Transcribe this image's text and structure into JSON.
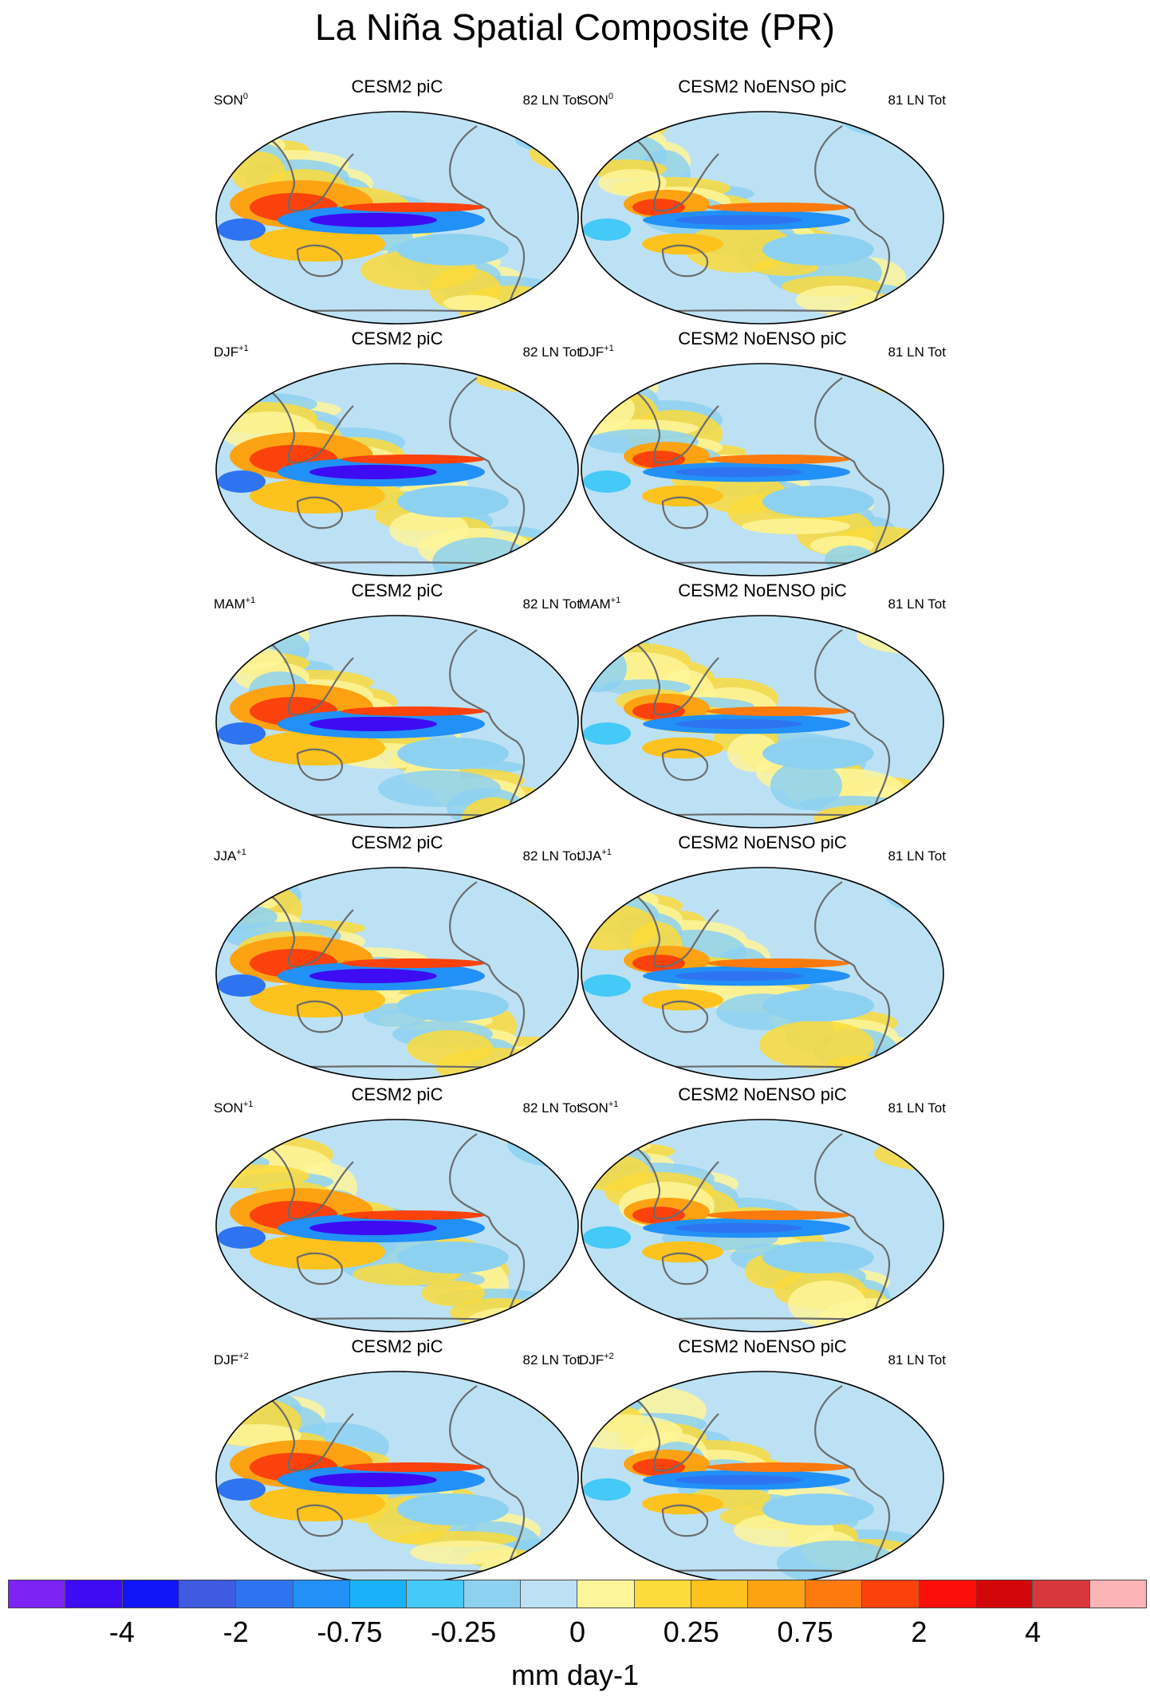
{
  "title": "La Niña Spatial Composite (PR)",
  "map_title_left": "CESM2 piC",
  "map_title_right": "CESM2 NoENSO piC",
  "count_left": "82 LN Tot",
  "count_right": "81 LN Tot",
  "rows": [
    {
      "season": "SON",
      "sup": "0"
    },
    {
      "season": "DJF",
      "sup": "+1"
    },
    {
      "season": "MAM",
      "sup": "+1"
    },
    {
      "season": "JJA",
      "sup": "+1"
    },
    {
      "season": "SON",
      "sup": "+1"
    },
    {
      "season": "DJF",
      "sup": "+2"
    }
  ],
  "colorbar": {
    "colors": [
      "#7c24f4",
      "#3d0cf3",
      "#1016f8",
      "#3f5be0",
      "#2e74f0",
      "#2190f7",
      "#19b2f8",
      "#45c9f7",
      "#8dd1f1",
      "#bde1f4",
      "#fef49a",
      "#fcdb3b",
      "#fdc21d",
      "#fda212",
      "#fc7a0e",
      "#fb420c",
      "#fc0f0b",
      "#d3070a",
      "#d8383b",
      "#fdb4b6"
    ],
    "ticks": [
      "-4",
      "-2",
      "-0.75",
      "-0.25",
      "0",
      "0.25",
      "0.75",
      "2",
      "4"
    ],
    "units": "mm day-1"
  }
}
